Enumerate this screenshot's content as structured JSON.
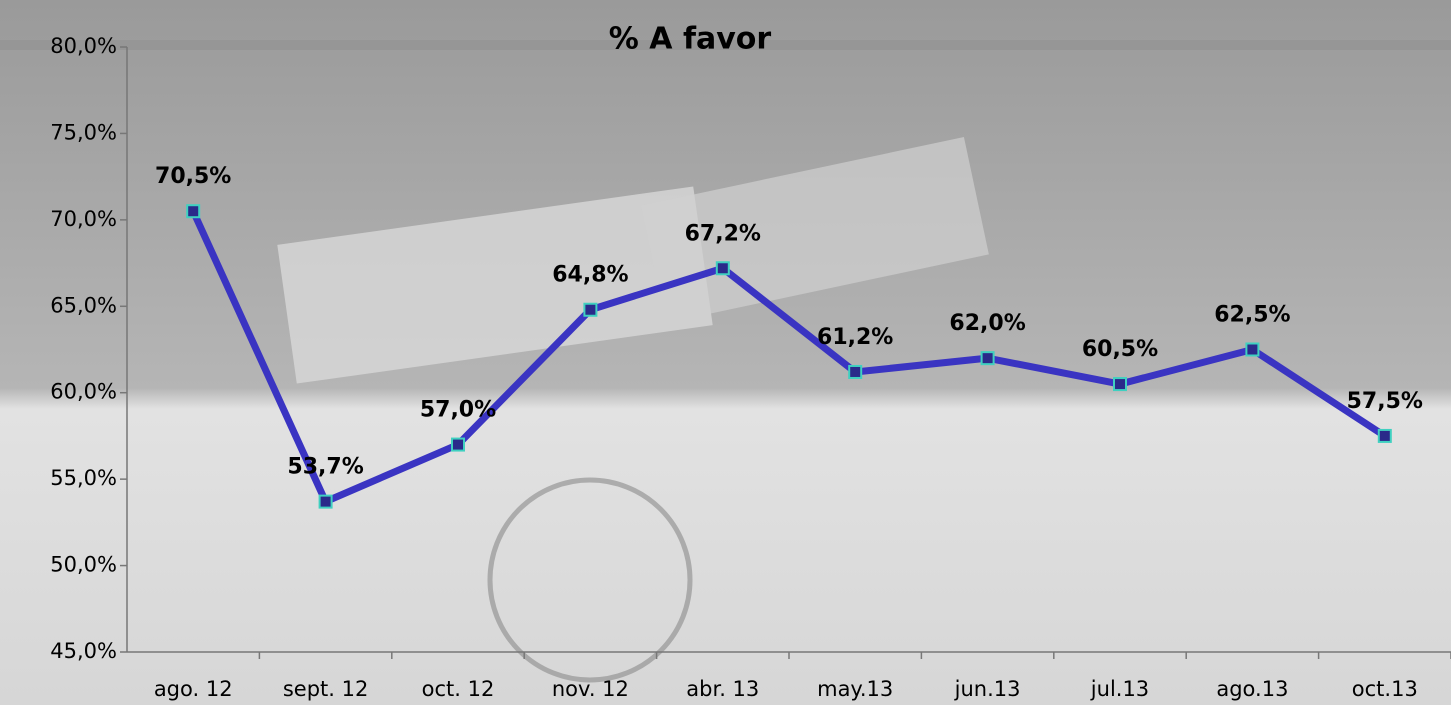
{
  "chart_data": {
    "type": "line",
    "title": "% A favor",
    "categories": [
      "ago. 12",
      "sept. 12",
      "oct. 12",
      "nov. 12",
      "abr. 13",
      "may.13",
      "jun.13",
      "jul.13",
      "ago.13",
      "oct.13"
    ],
    "series": [
      {
        "name": "% A favor",
        "color": "#3a34c2",
        "marker_color": "#2a2a8a",
        "marker_edge": "#3fd0c0",
        "values": [
          70.5,
          53.7,
          57.0,
          64.8,
          67.2,
          61.2,
          62.0,
          60.5,
          62.5,
          57.5
        ],
        "value_labels": [
          "70,5%",
          "53,7%",
          "57,0%",
          "64,8%",
          "67,2%",
          "61,2%",
          "62,0%",
          "60,5%",
          "62,5%",
          "57,5%"
        ]
      }
    ],
    "ylim": [
      45,
      80
    ],
    "yticks": [
      {
        "value": 45,
        "label": "45,0%"
      },
      {
        "value": 50,
        "label": "50,0%"
      },
      {
        "value": 55,
        "label": "55,0%"
      },
      {
        "value": 60,
        "label": "60,0%"
      },
      {
        "value": 65,
        "label": "65,0%"
      },
      {
        "value": 70,
        "label": "70,0%"
      },
      {
        "value": 75,
        "label": "75,0%"
      },
      {
        "value": 80,
        "label": "80,0%"
      }
    ],
    "grid": false
  }
}
